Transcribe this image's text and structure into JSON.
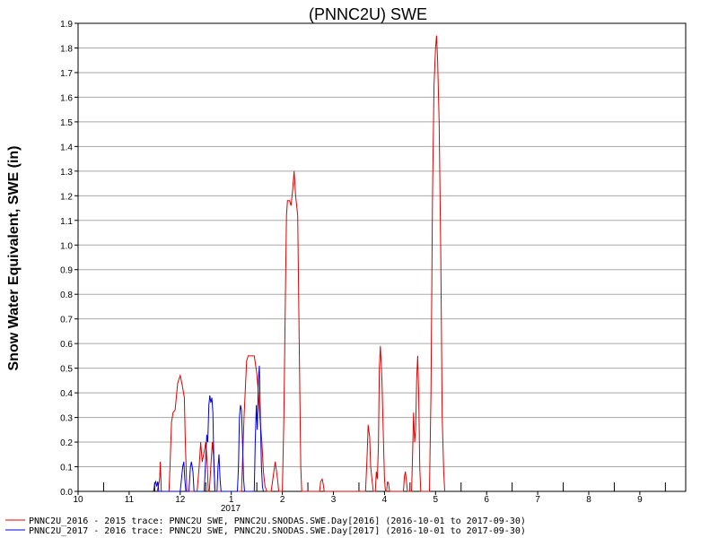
{
  "chart_data": {
    "type": "line",
    "title": "(PNNC2U) SWE",
    "ylabel": "Snow Water Equivalent, SWE (in)",
    "xlabel": "",
    "ylim": [
      0,
      1.9
    ],
    "yticks": [
      "0.0",
      "0.1",
      "0.2",
      "0.3",
      "0.4",
      "0.5",
      "0.6",
      "0.7",
      "0.8",
      "0.9",
      "1.0",
      "1.1",
      "1.2",
      "1.3",
      "1.4",
      "1.5",
      "1.6",
      "1.7",
      "1.8",
      "1.9"
    ],
    "month_ticks": [
      "10",
      "11",
      "12",
      "1",
      "2",
      "3",
      "4",
      "5",
      "6",
      "7",
      "8",
      "9"
    ],
    "year_label": "2017",
    "grid": true,
    "legend_position": "bottom",
    "series": [
      {
        "name": "PNNC2U_2016 - 2015 trace: PNNC2U SWE, PNNC2U.SNODAS.SWE.Day[2016] (2016-10-01 to 2017-09-30)",
        "color": "#e00000",
        "points": [
          [
            1.55,
            0
          ],
          [
            1.57,
            0.02
          ],
          [
            1.59,
            0.04
          ],
          [
            1.6,
            0.06
          ],
          [
            1.61,
            0.12
          ],
          [
            1.62,
            0.06
          ],
          [
            1.63,
            0
          ],
          [
            1.78,
            0
          ],
          [
            1.8,
            0.1
          ],
          [
            1.83,
            0.28
          ],
          [
            1.86,
            0.32
          ],
          [
            1.9,
            0.33
          ],
          [
            1.95,
            0.44
          ],
          [
            2.0,
            0.47
          ],
          [
            2.04,
            0.43
          ],
          [
            2.08,
            0.38
          ],
          [
            2.1,
            0.2
          ],
          [
            2.13,
            0
          ],
          [
            2.33,
            0
          ],
          [
            2.37,
            0.1
          ],
          [
            2.4,
            0.2
          ],
          [
            2.43,
            0.12
          ],
          [
            2.47,
            0.16
          ],
          [
            2.5,
            0.2
          ],
          [
            2.53,
            0.1
          ],
          [
            2.55,
            0
          ],
          [
            2.57,
            0
          ],
          [
            2.6,
            0.1
          ],
          [
            2.63,
            0.2
          ],
          [
            2.66,
            0.12
          ],
          [
            2.68,
            0
          ],
          [
            3.2,
            0
          ],
          [
            3.25,
            0.3
          ],
          [
            3.3,
            0.53
          ],
          [
            3.33,
            0.55
          ],
          [
            3.4,
            0.55
          ],
          [
            3.45,
            0.55
          ],
          [
            3.5,
            0.48
          ],
          [
            3.53,
            0.4
          ],
          [
            3.56,
            0.3
          ],
          [
            3.6,
            0.2
          ],
          [
            3.63,
            0.08
          ],
          [
            3.66,
            0.02
          ],
          [
            3.7,
            0
          ],
          [
            3.78,
            0
          ],
          [
            3.82,
            0.06
          ],
          [
            3.86,
            0.12
          ],
          [
            3.9,
            0.06
          ],
          [
            3.93,
            0
          ],
          [
            4.0,
            0
          ],
          [
            4.03,
            0.3
          ],
          [
            4.06,
            0.8
          ],
          [
            4.08,
            1.12
          ],
          [
            4.1,
            1.18
          ],
          [
            4.14,
            1.18
          ],
          [
            4.17,
            1.16
          ],
          [
            4.2,
            1.22
          ],
          [
            4.23,
            1.3
          ],
          [
            4.26,
            1.2
          ],
          [
            4.3,
            1.12
          ],
          [
            4.33,
            0.6
          ],
          [
            4.36,
            0.1
          ],
          [
            4.38,
            0
          ],
          [
            4.73,
            0
          ],
          [
            4.75,
            0.04
          ],
          [
            4.78,
            0.05
          ],
          [
            4.8,
            0.03
          ],
          [
            4.82,
            0
          ],
          [
            5.63,
            0
          ],
          [
            5.66,
            0.15
          ],
          [
            5.68,
            0.27
          ],
          [
            5.71,
            0.22
          ],
          [
            5.73,
            0.1
          ],
          [
            5.76,
            0.04
          ],
          [
            5.78,
            0
          ],
          [
            5.82,
            0
          ],
          [
            5.84,
            0.08
          ],
          [
            5.86,
            0.05
          ],
          [
            5.88,
            0.18
          ],
          [
            5.9,
            0.5
          ],
          [
            5.92,
            0.59
          ],
          [
            5.95,
            0.45
          ],
          [
            5.98,
            0.2
          ],
          [
            6.0,
            0.05
          ],
          [
            6.02,
            0
          ],
          [
            6.04,
            0
          ],
          [
            6.06,
            0.04
          ],
          [
            6.08,
            0.03
          ],
          [
            6.1,
            0
          ],
          [
            6.37,
            0
          ],
          [
            6.39,
            0.06
          ],
          [
            6.41,
            0.08
          ],
          [
            6.43,
            0.04
          ],
          [
            6.45,
            0
          ],
          [
            6.53,
            0
          ],
          [
            6.55,
            0.15
          ],
          [
            6.57,
            0.32
          ],
          [
            6.59,
            0.2
          ],
          [
            6.61,
            0.25
          ],
          [
            6.63,
            0.45
          ],
          [
            6.65,
            0.55
          ],
          [
            6.67,
            0.4
          ],
          [
            6.69,
            0.1
          ],
          [
            6.71,
            0
          ],
          [
            6.88,
            0
          ],
          [
            6.91,
            0.4
          ],
          [
            6.94,
            1.2
          ],
          [
            6.97,
            1.65
          ],
          [
            7.0,
            1.8
          ],
          [
            7.02,
            1.85
          ],
          [
            7.04,
            1.75
          ],
          [
            7.07,
            1.5
          ],
          [
            7.1,
            1.0
          ],
          [
            7.13,
            0.3
          ],
          [
            7.16,
            0.08
          ],
          [
            7.18,
            0
          ]
        ]
      },
      {
        "name": "PNNC2U_2017 - 2016 trace: PNNC2U SWE, PNNC2U.SNODAS.SWE.Day[2017] (2016-10-01 to 2017-09-30)",
        "color": "#0000e0",
        "points": [
          [
            1.48,
            0
          ],
          [
            1.5,
            0.03
          ],
          [
            1.52,
            0.04
          ],
          [
            1.54,
            0.02
          ],
          [
            1.56,
            0.04
          ],
          [
            1.58,
            0
          ],
          [
            2.0,
            0
          ],
          [
            2.02,
            0.04
          ],
          [
            2.05,
            0.1
          ],
          [
            2.07,
            0.12
          ],
          [
            2.09,
            0.05
          ],
          [
            2.11,
            0
          ],
          [
            2.17,
            0
          ],
          [
            2.2,
            0.1
          ],
          [
            2.22,
            0.12
          ],
          [
            2.25,
            0.08
          ],
          [
            2.27,
            0
          ],
          [
            2.47,
            0
          ],
          [
            2.5,
            0.14
          ],
          [
            2.52,
            0.23
          ],
          [
            2.54,
            0.2
          ],
          [
            2.56,
            0.35
          ],
          [
            2.58,
            0.39
          ],
          [
            2.6,
            0.36
          ],
          [
            2.62,
            0.38
          ],
          [
            2.64,
            0.32
          ],
          [
            2.66,
            0.1
          ],
          [
            2.68,
            0
          ],
          [
            2.72,
            0
          ],
          [
            2.74,
            0.1
          ],
          [
            2.76,
            0.15
          ],
          [
            2.78,
            0.05
          ],
          [
            2.8,
            0
          ],
          [
            3.12,
            0
          ],
          [
            3.14,
            0.1
          ],
          [
            3.16,
            0.3
          ],
          [
            3.18,
            0.35
          ],
          [
            3.2,
            0.33
          ],
          [
            3.22,
            0.2
          ],
          [
            3.24,
            0.05
          ],
          [
            3.26,
            0
          ],
          [
            3.45,
            0
          ],
          [
            3.47,
            0.2
          ],
          [
            3.49,
            0.35
          ],
          [
            3.51,
            0.25
          ],
          [
            3.53,
            0.45
          ],
          [
            3.55,
            0.51
          ],
          [
            3.57,
            0.3
          ],
          [
            3.59,
            0.1
          ],
          [
            3.61,
            0.02
          ],
          [
            3.63,
            0
          ]
        ]
      }
    ]
  }
}
